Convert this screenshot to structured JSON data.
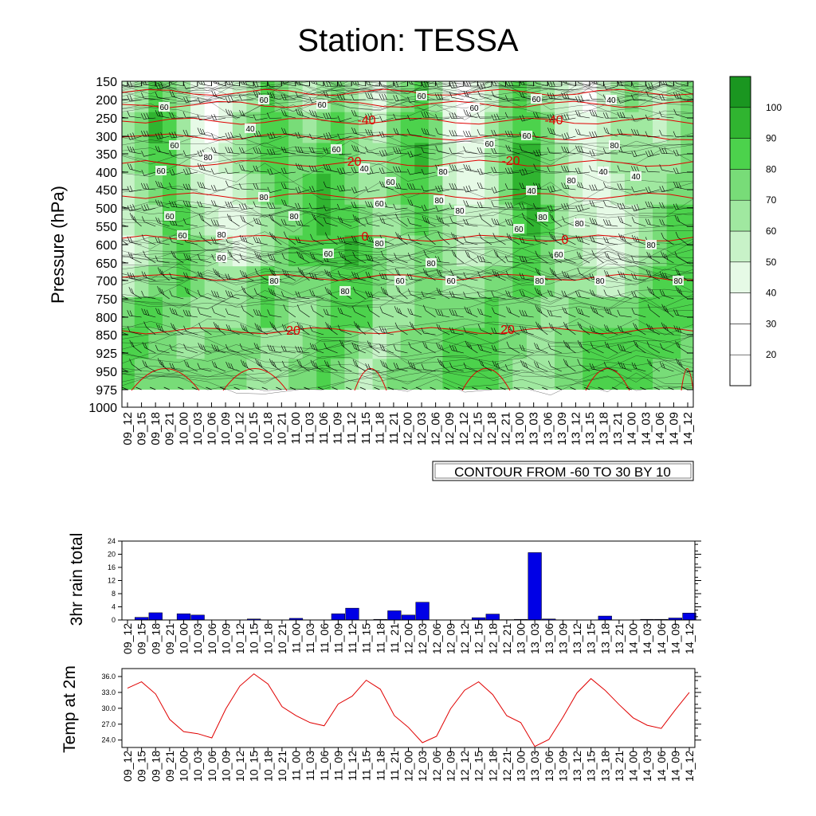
{
  "title": "Station: TESSA",
  "colors": {
    "shade": [
      "#ffffff",
      "#ffffff",
      "#ffffff",
      "#e6fae6",
      "#c8f2c8",
      "#a0e8a0",
      "#78dc78",
      "#4cd24c",
      "#30b430",
      "#1a9620"
    ],
    "red": "#e00000",
    "bar": "#0000e6",
    "line": "#e00000"
  },
  "time_labels": [
    "09_12",
    "09_15",
    "09_18",
    "09_21",
    "10_00",
    "10_03",
    "10_06",
    "10_09",
    "10_12",
    "10_15",
    "10_18",
    "10_21",
    "11_00",
    "11_03",
    "11_06",
    "11_09",
    "11_12",
    "11_15",
    "11_18",
    "11_21",
    "12_00",
    "12_03",
    "12_06",
    "12_09",
    "12_12",
    "12_15",
    "12_18",
    "12_21",
    "13_00",
    "13_03",
    "13_06",
    "13_09",
    "13_12",
    "13_15",
    "13_18",
    "13_21",
    "14_00",
    "14_03",
    "14_06",
    "14_09",
    "14_12"
  ],
  "contour_note": "CONTOUR FROM -60 TO 30 BY 10",
  "chart_data": [
    {
      "type": "heatmap",
      "title": "Station: TESSA",
      "ylabel": "Pressure (hPa)",
      "xlabel": "",
      "y_ticks": [
        150,
        200,
        250,
        300,
        350,
        400,
        450,
        500,
        550,
        600,
        650,
        700,
        750,
        800,
        850,
        925,
        950,
        975,
        1000
      ],
      "colorbar_labels": [
        100,
        90,
        80,
        70,
        60,
        50,
        40,
        30,
        20
      ],
      "colorbar_levels": [
        10,
        20,
        30,
        40,
        50,
        60,
        70,
        80,
        90,
        100
      ],
      "rh_contour_labels": [
        "60",
        "60",
        "60",
        "60",
        "60",
        "40",
        "40",
        "60",
        "60",
        "80",
        "60",
        "60",
        "60",
        "80",
        "40",
        "60",
        "60",
        "80",
        "80",
        "40",
        "80",
        "40",
        "80",
        "40",
        "80",
        "60",
        "60",
        "80",
        "80",
        "80",
        "60",
        "80",
        "80",
        "60",
        "60",
        "60",
        "80",
        "80",
        "60",
        "80",
        "60",
        "60",
        "80",
        "80",
        "80",
        "80"
      ],
      "temperature_contour_labels": [
        "-40",
        "-40",
        "-20",
        "-20",
        "0",
        "0",
        "20",
        "20"
      ],
      "temperature_levels": [
        -60,
        -50,
        -40,
        -30,
        -20,
        -10,
        0,
        10,
        20,
        30
      ],
      "rh_field": [
        [
          50,
          60,
          80,
          70,
          60,
          40,
          30,
          40,
          50,
          60,
          80,
          70,
          60,
          50,
          60,
          70,
          60,
          50,
          40,
          60,
          70,
          80,
          60,
          40,
          30,
          40,
          50,
          70,
          80,
          70,
          60,
          50,
          40,
          30,
          50,
          60,
          70,
          60,
          50,
          60,
          70
        ],
        [
          60,
          70,
          90,
          80,
          60,
          40,
          30,
          40,
          60,
          70,
          80,
          80,
          70,
          60,
          70,
          80,
          70,
          60,
          50,
          70,
          80,
          80,
          70,
          40,
          30,
          40,
          60,
          70,
          80,
          80,
          70,
          50,
          40,
          40,
          50,
          60,
          60,
          60,
          50,
          60,
          70
        ],
        [
          60,
          70,
          80,
          80,
          60,
          40,
          40,
          50,
          60,
          70,
          80,
          80,
          70,
          70,
          80,
          80,
          70,
          60,
          60,
          70,
          80,
          90,
          70,
          50,
          40,
          40,
          60,
          70,
          90,
          90,
          70,
          60,
          50,
          40,
          50,
          60,
          60,
          60,
          60,
          60,
          70
        ],
        [
          50,
          60,
          70,
          80,
          70,
          50,
          40,
          40,
          50,
          60,
          70,
          80,
          70,
          80,
          90,
          80,
          70,
          60,
          60,
          70,
          80,
          80,
          70,
          50,
          40,
          40,
          50,
          70,
          90,
          90,
          70,
          60,
          50,
          40,
          40,
          50,
          60,
          60,
          60,
          70,
          70
        ],
        [
          50,
          60,
          60,
          80,
          80,
          60,
          50,
          40,
          40,
          50,
          60,
          70,
          70,
          80,
          90,
          80,
          80,
          70,
          60,
          60,
          70,
          80,
          70,
          60,
          50,
          50,
          50,
          60,
          80,
          90,
          80,
          60,
          50,
          50,
          40,
          40,
          50,
          60,
          70,
          80,
          80
        ],
        [
          40,
          50,
          60,
          70,
          80,
          70,
          60,
          50,
          40,
          50,
          60,
          70,
          80,
          80,
          80,
          80,
          90,
          80,
          70,
          60,
          60,
          70,
          70,
          60,
          50,
          50,
          60,
          60,
          80,
          80,
          70,
          60,
          60,
          50,
          40,
          40,
          50,
          60,
          70,
          80,
          80
        ],
        [
          50,
          60,
          70,
          70,
          80,
          70,
          60,
          60,
          60,
          70,
          80,
          70,
          70,
          70,
          70,
          80,
          80,
          80,
          70,
          60,
          60,
          70,
          70,
          60,
          60,
          60,
          70,
          70,
          80,
          80,
          70,
          60,
          60,
          60,
          50,
          50,
          60,
          70,
          80,
          80,
          80
        ],
        [
          70,
          80,
          80,
          70,
          70,
          60,
          60,
          60,
          60,
          70,
          80,
          70,
          60,
          60,
          70,
          80,
          80,
          80,
          60,
          60,
          60,
          70,
          70,
          70,
          70,
          70,
          80,
          70,
          70,
          70,
          60,
          60,
          70,
          70,
          70,
          70,
          70,
          80,
          80,
          80,
          80
        ],
        [
          80,
          80,
          70,
          70,
          60,
          60,
          70,
          70,
          70,
          70,
          60,
          60,
          60,
          70,
          80,
          80,
          70,
          60,
          50,
          60,
          70,
          70,
          70,
          80,
          80,
          80,
          80,
          70,
          70,
          60,
          60,
          70,
          70,
          80,
          80,
          80,
          80,
          80,
          80,
          80,
          70
        ],
        [
          80,
          70,
          70,
          70,
          70,
          70,
          70,
          70,
          70,
          60,
          60,
          60,
          70,
          70,
          80,
          70,
          60,
          50,
          60,
          70,
          70,
          70,
          70,
          80,
          80,
          80,
          80,
          70,
          60,
          60,
          60,
          70,
          70,
          80,
          80,
          80,
          80,
          80,
          70,
          70,
          70
        ]
      ]
    },
    {
      "type": "bar",
      "ylabel": "3hr rain total",
      "xlabel": "",
      "ylim": [
        0,
        24
      ],
      "y_ticks": [
        0,
        4,
        8,
        12,
        16,
        20,
        24
      ],
      "values": [
        0,
        0.8,
        2.2,
        0,
        1.9,
        1.5,
        0,
        0,
        0,
        0.3,
        0,
        0,
        0.5,
        0,
        0,
        1.9,
        3.6,
        0,
        0.2,
        2.8,
        1.5,
        5.4,
        0,
        0,
        0,
        0.7,
        1.8,
        0.1,
        0.2,
        20.5,
        0.3,
        0,
        0,
        0,
        1.2,
        0,
        0,
        0.2,
        0.2,
        0.6,
        2.1
      ]
    },
    {
      "type": "line",
      "ylabel": "Temp at 2m",
      "xlabel": "",
      "ylim": [
        22.6,
        37.5
      ],
      "y_ticks": [
        24.0,
        27.0,
        30.0,
        33.0,
        36.0
      ],
      "y_tick_labels": [
        "24.0",
        "27.0",
        "30.0",
        "33.0",
        "36.0"
      ],
      "values": [
        33.8,
        35.0,
        32.7,
        27.9,
        25.6,
        25.2,
        24.4,
        29.9,
        34.2,
        36.5,
        34.6,
        30.3,
        28.6,
        27.3,
        26.7,
        30.8,
        32.3,
        35.3,
        33.6,
        28.6,
        26.4,
        23.5,
        24.7,
        29.9,
        33.4,
        35.0,
        32.6,
        28.6,
        27.3,
        22.8,
        24.1,
        28.3,
        32.9,
        35.6,
        33.4,
        30.7,
        28.2,
        26.8,
        26.2,
        29.7,
        33.0
      ]
    }
  ]
}
